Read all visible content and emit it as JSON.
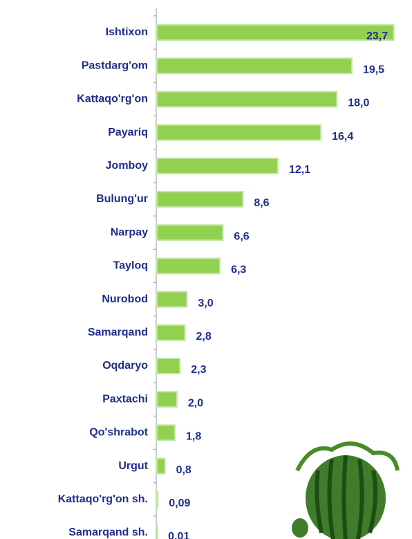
{
  "chart_data": {
    "type": "bar",
    "orientation": "horizontal",
    "categories": [
      "Ishtixon",
      "Pastdarg'om",
      "Kattaqo'rg'on",
      "Payariq",
      "Jomboy",
      "Bulung'ur",
      "Narpay",
      "Tayloq",
      "Nurobod",
      "Samarqand",
      "Oqdaryo",
      "Paxtachi",
      "Qo'shrabot",
      "Urgut",
      "Kattaqo'rg'on sh.",
      "Samarqand sh."
    ],
    "values": [
      23.7,
      19.5,
      18.0,
      16.4,
      12.1,
      8.6,
      6.6,
      6.3,
      3.0,
      2.8,
      2.3,
      2.0,
      1.8,
      0.8,
      0.09,
      0.01
    ],
    "value_labels": [
      "23,7",
      "19,5",
      "18,0",
      "16,4",
      "12,1",
      "8,6",
      "6,6",
      "6,3",
      "3,0",
      "2,8",
      "2,3",
      "2,0",
      "1,8",
      "0,8",
      "0,09",
      "0,01"
    ],
    "color": "#92d050",
    "xlim": [
      0,
      24
    ]
  }
}
